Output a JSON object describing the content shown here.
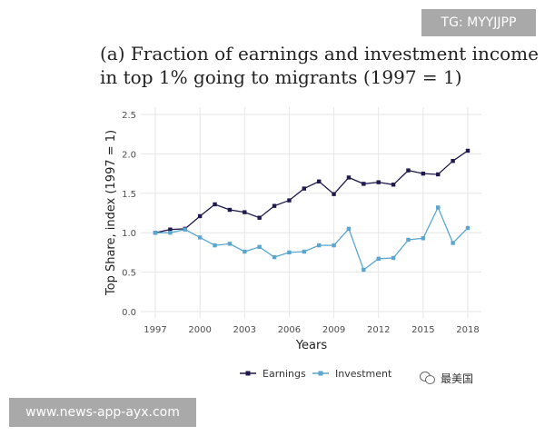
{
  "badges": {
    "tg_label": "TG: MYYJJPP",
    "site_label": "www.news-app-ayx.com",
    "wechat_label": "最美国"
  },
  "colors": {
    "earnings": "#1f1a4d",
    "investment": "#5ba6cf",
    "grid": "#e6e6e6",
    "tick": "#4d4d4d"
  },
  "chart_data": {
    "type": "line",
    "title_lines": [
      "(a) Fraction of earnings and investment income",
      "in top 1% going to migrants (1997 = 1)"
    ],
    "xlabel": "Years",
    "ylabel": "Top Share, index (1997 = 1)",
    "xlim": [
      1997,
      2018
    ],
    "ylim": [
      0.0,
      2.5
    ],
    "x_ticks": [
      1997,
      2000,
      2003,
      2006,
      2009,
      2012,
      2015,
      2018
    ],
    "y_ticks": [
      0.0,
      0.5,
      1.0,
      1.5,
      2.0,
      2.5
    ],
    "y_tick_labels": [
      "0.0",
      "0.5",
      "1.0",
      "1.5",
      "2.0",
      "2.5"
    ],
    "grid": true,
    "legend_position": "bottom",
    "x": [
      1997,
      1998,
      1999,
      2000,
      2001,
      2002,
      2003,
      2004,
      2005,
      2006,
      2007,
      2008,
      2009,
      2010,
      2011,
      2012,
      2013,
      2014,
      2015,
      2016,
      2017,
      2018
    ],
    "series": [
      {
        "name": "Earnings",
        "color": "#1f1a4d",
        "values": [
          1.0,
          1.04,
          1.05,
          1.21,
          1.36,
          1.29,
          1.26,
          1.19,
          1.34,
          1.41,
          1.56,
          1.65,
          1.49,
          1.7,
          1.62,
          1.64,
          1.61,
          1.79,
          1.75,
          1.74,
          1.91,
          2.04
        ]
      },
      {
        "name": "Investment",
        "color": "#5ba6cf",
        "values": [
          1.0,
          1.0,
          1.04,
          0.94,
          0.84,
          0.86,
          0.76,
          0.82,
          0.69,
          0.75,
          0.76,
          0.84,
          0.84,
          1.05,
          0.53,
          0.67,
          0.68,
          0.91,
          0.93,
          1.32,
          0.87,
          1.06
        ]
      }
    ]
  }
}
